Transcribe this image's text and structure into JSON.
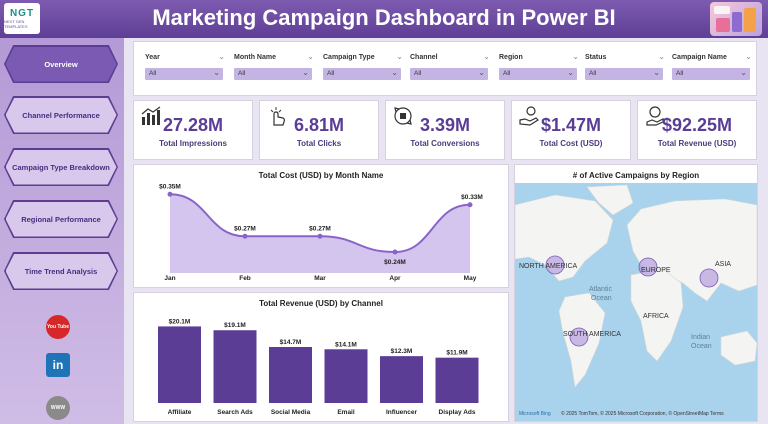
{
  "header": {
    "logo_text": "NGT",
    "logo_sub": "NEXT GEN TEMPLATES",
    "title": "Marketing Campaign Dashboard in Power BI"
  },
  "sidebar": {
    "items": [
      {
        "label": "Overview",
        "active": true
      },
      {
        "label": "Channel Performance",
        "active": false
      },
      {
        "label": "Campaign Type Breakdown",
        "active": false
      },
      {
        "label": "Regional Performance",
        "active": false
      },
      {
        "label": "Time Trend Analysis",
        "active": false
      }
    ],
    "social": [
      {
        "icon": "youtube-icon",
        "text": "You Tube",
        "color": "#d62828"
      },
      {
        "icon": "linkedin-icon",
        "text": "in",
        "color": "#1f73b7"
      },
      {
        "icon": "globe-icon",
        "text": "WWW",
        "color": "#7a7a7a"
      }
    ]
  },
  "filters": [
    {
      "label": "Year",
      "value": "All"
    },
    {
      "label": "Month Name",
      "value": "All"
    },
    {
      "label": "Campaign Type",
      "value": "All"
    },
    {
      "label": "Channel",
      "value": "All"
    },
    {
      "label": "Region",
      "value": "All"
    },
    {
      "label": "Status",
      "value": "All"
    },
    {
      "label": "Campaign Name",
      "value": "All"
    }
  ],
  "kpis": [
    {
      "value": "27.28M",
      "label": "Total Impressions",
      "icon": "impressions-chart-icon"
    },
    {
      "value": "6.81M",
      "label": "Total Clicks",
      "icon": "hand-click-icon"
    },
    {
      "value": "3.39M",
      "label": "Total Conversions",
      "icon": "conversion-cycle-icon"
    },
    {
      "value": "$1.47M",
      "label": "Total Cost (USD)",
      "icon": "money-hand-icon"
    },
    {
      "value": "$92.25M",
      "label": "Total Revenue (USD)",
      "icon": "revenue-icon"
    }
  ],
  "colors": {
    "accent": "#5a3d96",
    "bar": "#5b3d96",
    "area": "#c9b6ea",
    "line": "#8a63c8"
  },
  "chart_data": [
    {
      "type": "area",
      "title": "Total Cost (USD) by Month Name",
      "categories": [
        "Jan",
        "Feb",
        "Mar",
        "Apr",
        "May"
      ],
      "values": [
        0.35,
        0.27,
        0.27,
        0.24,
        0.33
      ],
      "data_labels": [
        "$0.35M",
        "$0.27M",
        "$0.27M",
        "$0.24M",
        "$0.33M"
      ],
      "ylim": [
        0.2,
        0.36
      ],
      "grid": false
    },
    {
      "type": "bar",
      "title": "Total Revenue (USD) by Channel",
      "categories": [
        "Affiliate",
        "Search Ads",
        "Social Media",
        "Email",
        "Influencer",
        "Display Ads"
      ],
      "values": [
        20.1,
        19.1,
        14.7,
        14.1,
        12.3,
        11.9
      ],
      "data_labels": [
        "$20.1M",
        "$19.1M",
        "$14.7M",
        "$14.1M",
        "$12.3M",
        "$11.9M"
      ],
      "ylim": [
        0,
        21
      ],
      "grid": false
    }
  ],
  "map": {
    "title": "# of Active Campaigns by Region",
    "labels": {
      "north_america": "NORTH AMERICA",
      "europe": "EUROPE",
      "asia": "ASIA",
      "africa": "AFRICA",
      "south_america": "SOUTH AMERICA",
      "atlantic": "Atlantic",
      "ocean1": "Ocean",
      "indian": "Indian",
      "ocean2": "Ocean"
    },
    "attribution": "© 2025 TomTom, © 2025 Microsoft Corporation, © OpenStreetMap  Terms",
    "bing": "Microsoft Bing"
  }
}
